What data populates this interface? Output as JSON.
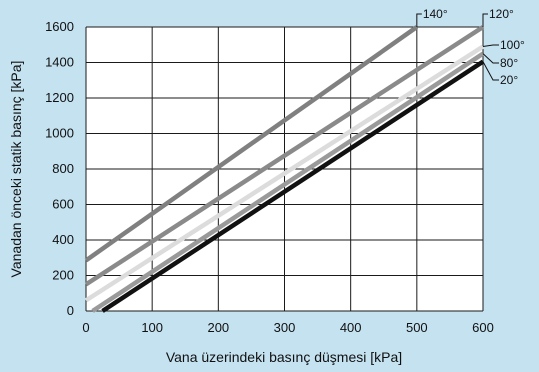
{
  "colors": {
    "background": "#c5e2f1",
    "plot_background": "#ffffff",
    "grid": "#1a1a1a"
  },
  "chart_data": {
    "type": "line",
    "title": "",
    "xlabel": "Vana üzerindeki basınç düşmesi [kPa]",
    "ylabel": "Vanadan önceki statik basınç [kPa]",
    "xlim": [
      0,
      600
    ],
    "ylim": [
      0,
      1600
    ],
    "xticks": [
      0,
      100,
      200,
      300,
      400,
      500,
      600
    ],
    "yticks": [
      0,
      200,
      400,
      600,
      800,
      1000,
      1200,
      1400,
      1600
    ],
    "grid": true,
    "series": [
      {
        "name": "140°",
        "color": "#808080",
        "points": [
          [
            0,
            285
          ],
          [
            500,
            1600
          ]
        ]
      },
      {
        "name": "120°",
        "color": "#8a8a8a",
        "points": [
          [
            0,
            150
          ],
          [
            600,
            1600
          ]
        ]
      },
      {
        "name": "100°",
        "color": "#dcdcdc",
        "points": [
          [
            0,
            60
          ],
          [
            600,
            1490
          ]
        ]
      },
      {
        "name": "80°",
        "color": "#9a9a9a",
        "points": [
          [
            10,
            0
          ],
          [
            600,
            1450
          ]
        ]
      },
      {
        "name": "20°",
        "color": "#111111",
        "points": [
          [
            25,
            0
          ],
          [
            600,
            1405
          ]
        ]
      }
    ]
  }
}
